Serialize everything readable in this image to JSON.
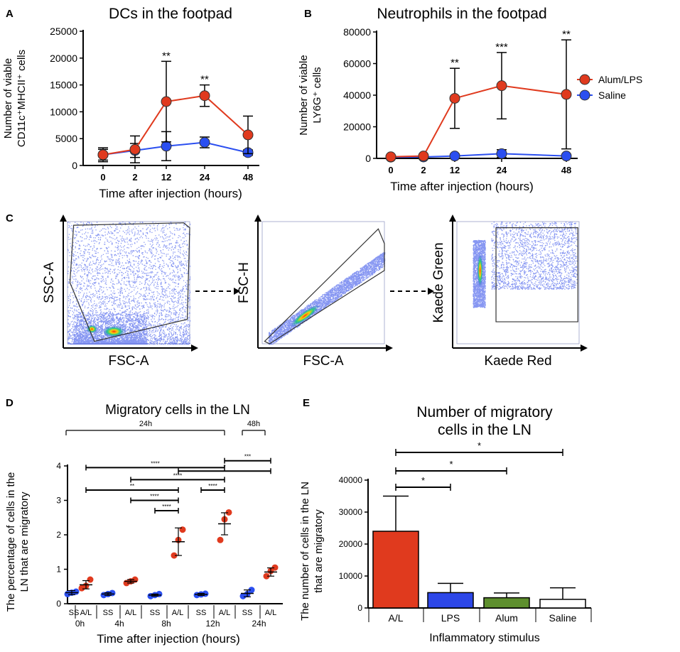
{
  "colors": {
    "alum_lps": "#e03a1e",
    "saline": "#2b4ff0",
    "lps_bar": "#2d47e8",
    "alum_bar": "#5e8f2e",
    "saline_bar": "#ffffff"
  },
  "legend": {
    "items": [
      {
        "label": "Alum/LPS",
        "color": "#e03a1e"
      },
      {
        "label": "Saline",
        "color": "#2b4ff0"
      }
    ]
  },
  "panel_labels": [
    "A",
    "B",
    "C",
    "D",
    "E"
  ],
  "chart_data": [
    {
      "id": "A",
      "type": "line",
      "title": "DCs in the footpad",
      "xlabel": "Time after injection (hours)",
      "ylabel_line1": "Number of viable",
      "ylabel_line2": "CD11c⁺MHCII⁺ cells",
      "categories": [
        "0",
        "2",
        "12",
        "24",
        "48"
      ],
      "ylim": [
        0,
        25000
      ],
      "yticks": [
        0,
        5000,
        10000,
        15000,
        20000,
        25000
      ],
      "series": [
        {
          "name": "Alum/LPS",
          "values": [
            2000,
            3000,
            11900,
            13000,
            5700
          ],
          "err": [
            1300,
            2500,
            7500,
            2000,
            3500
          ]
        },
        {
          "name": "Saline",
          "values": [
            2000,
            2800,
            3600,
            4300,
            2400
          ],
          "err": [
            1000,
            1300,
            2700,
            1000,
            500
          ]
        }
      ],
      "significance": [
        {
          "index": 2,
          "label": "**"
        },
        {
          "index": 3,
          "label": "**"
        }
      ]
    },
    {
      "id": "B",
      "type": "line",
      "title": "Neutrophils in the footpad",
      "xlabel": "Time after injection (hours)",
      "ylabel_line1": "Number of viable",
      "ylabel_line2": "LY6G⁺ cells",
      "categories": [
        "0",
        "2",
        "12",
        "24",
        "48"
      ],
      "ylim": [
        0,
        80000
      ],
      "yticks": [
        0,
        20000,
        40000,
        60000,
        80000
      ],
      "series": [
        {
          "name": "Alum/LPS",
          "values": [
            1000,
            1500,
            38000,
            46000,
            40500
          ],
          "err": [
            500,
            800,
            19000,
            21000,
            34500
          ]
        },
        {
          "name": "Saline",
          "values": [
            800,
            900,
            1500,
            3000,
            1500
          ],
          "err": [
            400,
            500,
            1200,
            2500,
            800
          ]
        }
      ],
      "significance": [
        {
          "index": 2,
          "label": "**"
        },
        {
          "index": 3,
          "label": "***"
        },
        {
          "index": 4,
          "label": "**"
        }
      ]
    },
    {
      "id": "D",
      "type": "scatter",
      "title": "Migratory cells in the LN",
      "xlabel": "Time after injection (hours)",
      "ylabel_line1": "The percentage of cells in the",
      "ylabel_line2": "LN that are migratory",
      "ylim": [
        0,
        4
      ],
      "yticks": [
        0,
        1,
        2,
        3,
        4
      ],
      "groups": [
        {
          "label": "SS",
          "time": "0h",
          "mean": 0.32,
          "sem": 0.06,
          "points": [
            0.28,
            0.32,
            0.35
          ]
        },
        {
          "label": "A/L",
          "time": "0h",
          "mean": 0.55,
          "sem": 0.12,
          "points": [
            0.45,
            0.52,
            0.7
          ]
        },
        {
          "label": "SS",
          "time": "4h",
          "mean": 0.28,
          "sem": 0.04,
          "points": [
            0.25,
            0.28,
            0.31
          ]
        },
        {
          "label": "A/L",
          "time": "4h",
          "mean": 0.65,
          "sem": 0.05,
          "points": [
            0.6,
            0.65,
            0.7
          ]
        },
        {
          "label": "SS",
          "time": "8h",
          "mean": 0.25,
          "sem": 0.03,
          "points": [
            0.22,
            0.25,
            0.28
          ]
        },
        {
          "label": "A/L",
          "time": "8h",
          "mean": 1.8,
          "sem": 0.4,
          "points": [
            1.4,
            1.85,
            2.15
          ]
        },
        {
          "label": "SS",
          "time": "12h",
          "mean": 0.27,
          "sem": 0.03,
          "points": [
            0.25,
            0.27,
            0.29
          ]
        },
        {
          "label": "A/L",
          "time": "12h",
          "mean": 2.32,
          "sem": 0.32,
          "points": [
            1.85,
            2.45,
            2.65
          ]
        },
        {
          "label": "SS",
          "time": "24h",
          "mean": 0.3,
          "sem": 0.1,
          "points": [
            0.22,
            0.28,
            0.4
          ]
        },
        {
          "label": "A/L",
          "time": "24h",
          "mean": 0.92,
          "sem": 0.12,
          "points": [
            0.8,
            0.95,
            1.05
          ]
        }
      ],
      "comparisons": [
        {
          "from": 1,
          "to": 5,
          "y": 3.3,
          "label": "**"
        },
        {
          "from": 1,
          "to": 7,
          "y": 3.95,
          "label": "****"
        },
        {
          "from": 3,
          "to": 5,
          "y": 3.0,
          "label": "****"
        },
        {
          "from": 3,
          "to": 7,
          "y": 3.6,
          "label": "****"
        },
        {
          "from": 4,
          "to": 5,
          "y": 2.7,
          "label": "****"
        },
        {
          "from": 6,
          "to": 7,
          "y": 3.3,
          "label": "****"
        },
        {
          "from": 5,
          "to": 9,
          "y": 3.85,
          "label": "*"
        },
        {
          "from": 7,
          "to": 9,
          "y": 4.15,
          "label": "***"
        }
      ],
      "brackets": [
        {
          "label": "24h"
        },
        {
          "label": "48h"
        }
      ]
    },
    {
      "id": "E",
      "type": "bar",
      "title_line1": "Number of migratory",
      "title_line2": "cells in the LN",
      "xlabel": "Inflammatory stimulus",
      "ylabel_line1": "The number of cells in the LN",
      "ylabel_line2": "that are migratory",
      "categories": [
        "A/L",
        "LPS",
        "Alum",
        "Saline"
      ],
      "values": [
        24000,
        4800,
        3200,
        2700
      ],
      "err": [
        11000,
        2900,
        1500,
        3600
      ],
      "ylim": [
        0,
        40000
      ],
      "yticks": [
        0,
        10000,
        20000,
        30000,
        40000
      ],
      "comparisons": [
        {
          "to": 1,
          "label": "*"
        },
        {
          "to": 2,
          "label": "*"
        },
        {
          "to": 3,
          "label": "*"
        }
      ]
    }
  ],
  "flow_panels": [
    {
      "xlabel": "FSC-A",
      "ylabel": "SSC-A"
    },
    {
      "xlabel": "FSC-A",
      "ylabel": "FSC-H"
    },
    {
      "xlabel": "Kaede Red",
      "ylabel": "Kaede Green"
    }
  ]
}
